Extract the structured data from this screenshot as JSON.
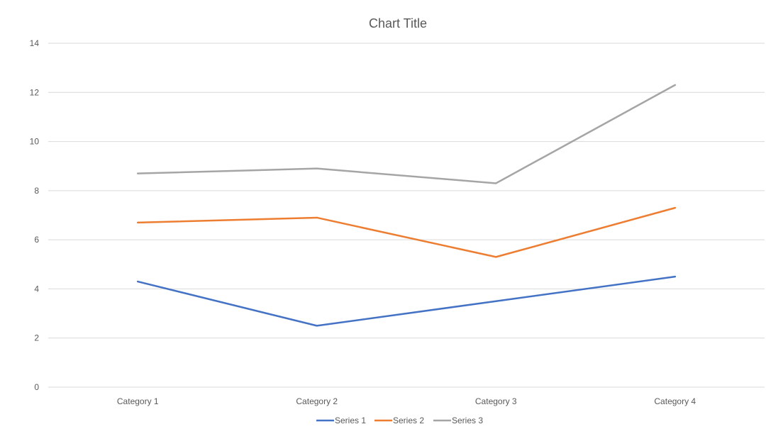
{
  "chart_data": {
    "type": "line",
    "title": "Chart Title",
    "xlabel": "",
    "ylabel": "",
    "categories": [
      "Category 1",
      "Category 2",
      "Category 3",
      "Category 4"
    ],
    "ylim": [
      0,
      14
    ],
    "yticks": [
      0,
      2,
      4,
      6,
      8,
      10,
      12,
      14
    ],
    "grid": true,
    "legend_position": "bottom",
    "series": [
      {
        "name": "Series 1",
        "color": "#4472C4",
        "values": [
          4.3,
          2.5,
          3.5,
          4.5
        ]
      },
      {
        "name": "Series 2",
        "color": "#ED7D31",
        "values": [
          6.7,
          6.9,
          5.3,
          7.3
        ]
      },
      {
        "name": "Series 3",
        "color": "#A5A5A5",
        "values": [
          8.7,
          8.9,
          8.3,
          12.3
        ]
      }
    ]
  }
}
